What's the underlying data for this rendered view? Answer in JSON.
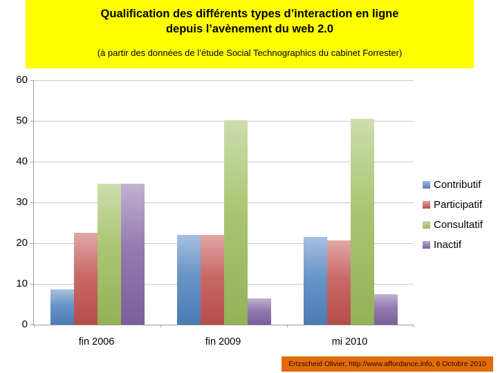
{
  "slide_title": {
    "line1": "Qualification des différents types d’interaction en ligne",
    "line2": "depuis l’avènement du web 2.0",
    "subtitle": "(à partir des données de l’étude Social Technographics du cabinet Forrester)"
  },
  "footer": {
    "credit": "Ertzscheid Olivier, http://www.affordance.info, 6 Octobre 2010"
  },
  "colors": {
    "title_bg": "#ffff00",
    "footer_bg": "#e36c09",
    "gridline": "#c9c9c9",
    "axis": "#9a9a9a",
    "contributif": "#4f81bd",
    "participatif": "#c0504d",
    "consultatif": "#9bbb59",
    "inactif": "#8064a2"
  },
  "chart_data": {
    "type": "bar",
    "title": "",
    "categories": [
      "fin 2006",
      "fin 2009",
      "mi 2010"
    ],
    "series": [
      {
        "name": "Contributif",
        "color": "#4f81bd",
        "values": [
          8.7,
          22.0,
          21.5
        ]
      },
      {
        "name": "Participatif",
        "color": "#c0504d",
        "values": [
          22.5,
          22.0,
          20.7
        ]
      },
      {
        "name": "Consultatif",
        "color": "#9bbb59",
        "values": [
          34.5,
          50.2,
          50.5
        ]
      },
      {
        "name": "Inactif",
        "color": "#8064a2",
        "values": [
          34.5,
          6.5,
          7.5
        ]
      }
    ],
    "xlabel": "",
    "ylabel": "",
    "ylim": [
      0,
      60
    ],
    "yticks": [
      0,
      10,
      20,
      30,
      40,
      50,
      60
    ],
    "grid": true,
    "legend_position": "right"
  }
}
